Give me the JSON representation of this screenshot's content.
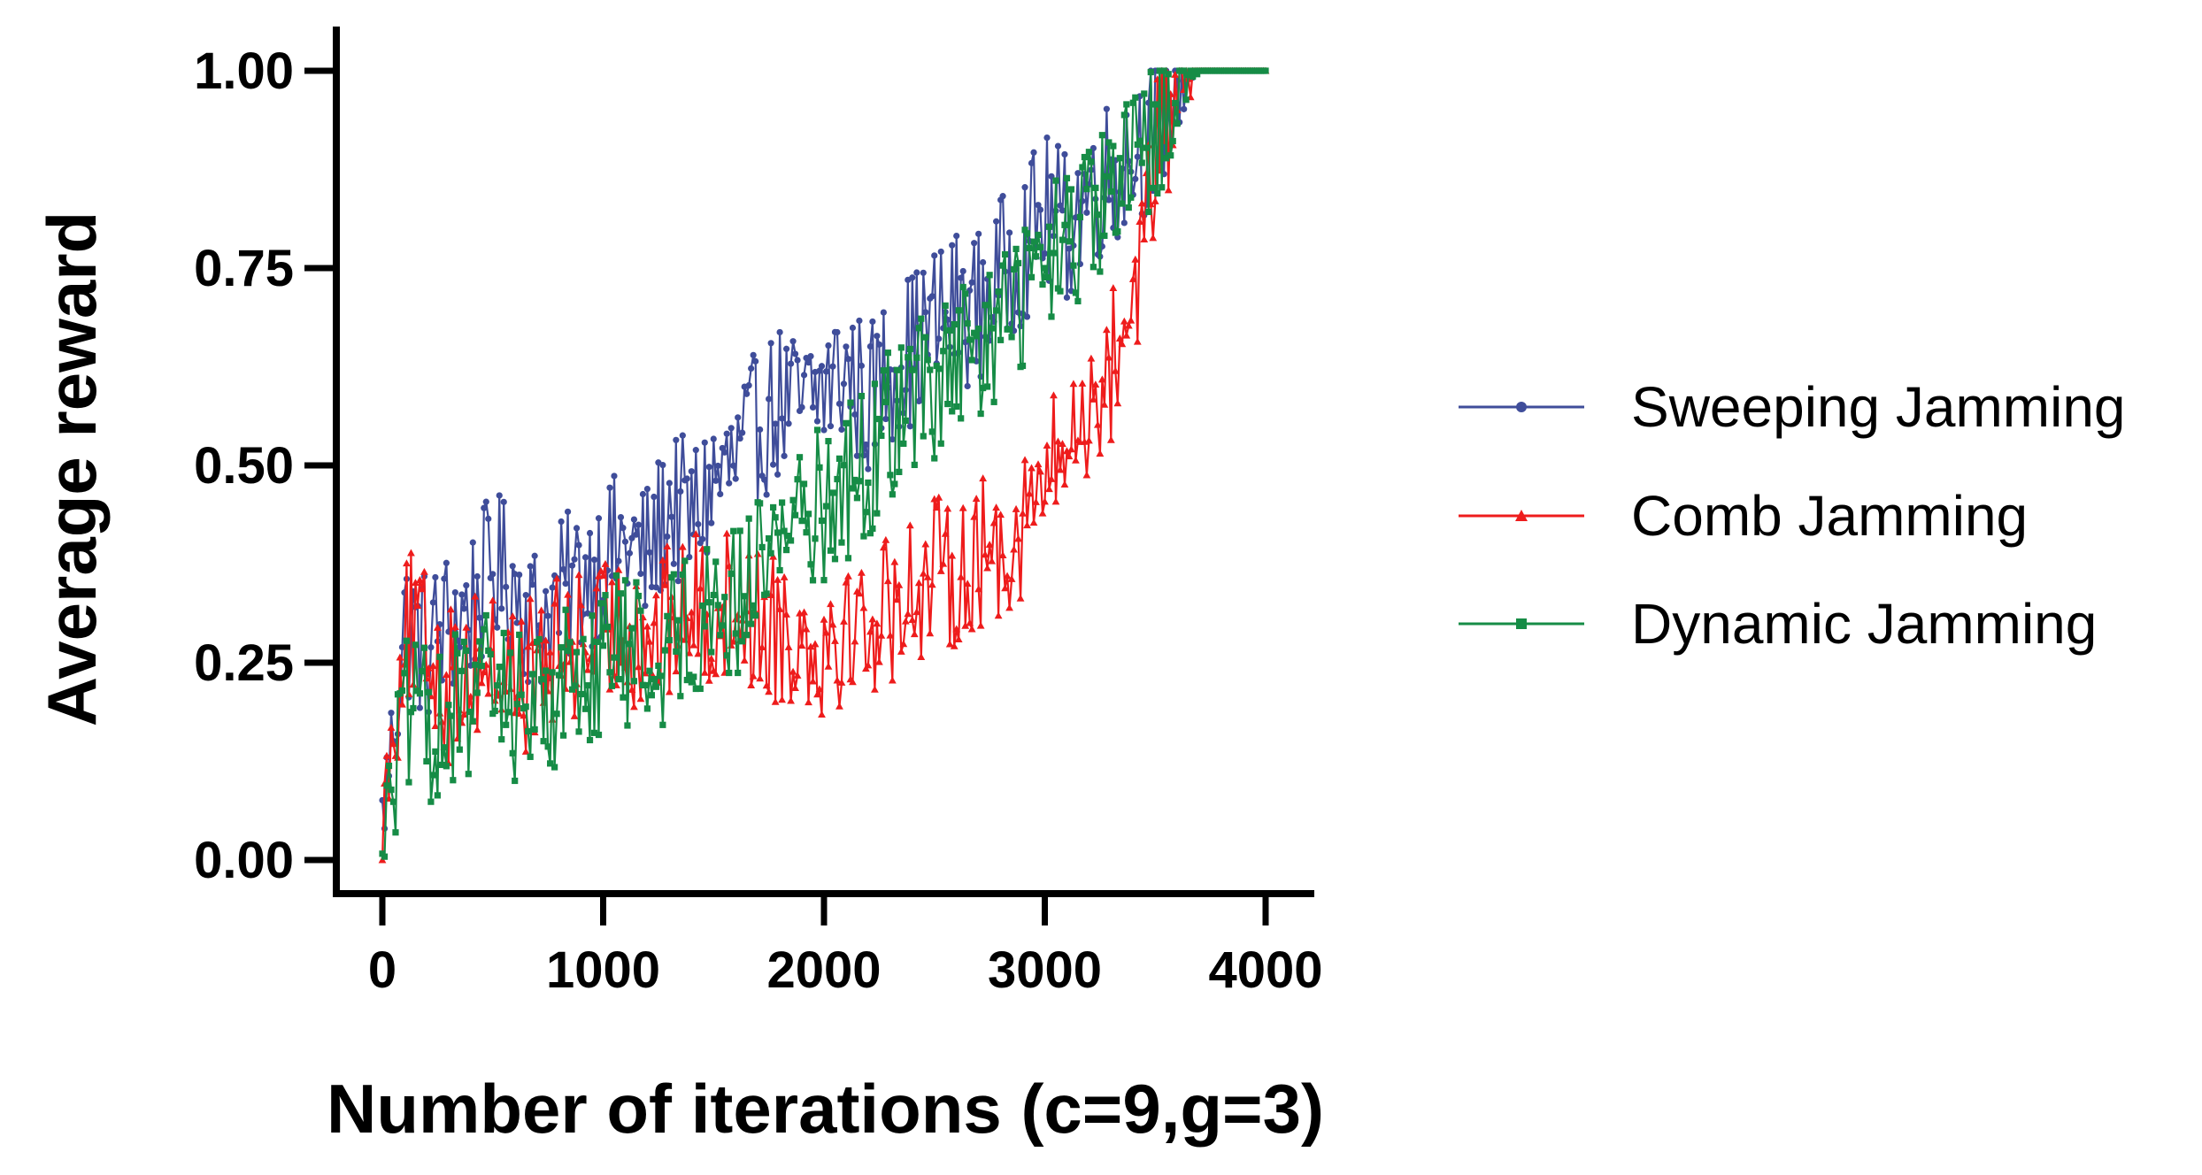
{
  "chart_data": {
    "type": "line",
    "title": "",
    "xlabel": "Number of iterations (c=9,g=3)",
    "ylabel": "Average reward",
    "xlim": [
      0,
      4000
    ],
    "ylim": [
      0.0,
      1.0
    ],
    "x_ticks": [
      0,
      1000,
      2000,
      3000,
      4000
    ],
    "x_tick_labels": [
      "0",
      "1000",
      "2000",
      "3000",
      "4000"
    ],
    "y_ticks": [
      0.0,
      0.25,
      0.5,
      0.75,
      1.0
    ],
    "y_tick_labels": [
      "0.00",
      "0.25",
      "0.50",
      "0.75",
      "1.00"
    ],
    "grid": false,
    "legend_position": "right",
    "series": [
      {
        "name": "Sweeping Jamming",
        "color": "#3f4d9a",
        "marker": "circle",
        "x": [
          0,
          100,
          200,
          300,
          400,
          500,
          600,
          700,
          800,
          900,
          1000,
          1100,
          1200,
          1300,
          1400,
          1500,
          1600,
          1700,
          1800,
          1900,
          2000,
          2100,
          2200,
          2300,
          2400,
          2500,
          2600,
          2700,
          2800,
          2900,
          3000,
          3100,
          3200,
          3300,
          3400,
          3500,
          3600,
          3700,
          3800,
          3900,
          4000
        ],
        "values": [
          0.05,
          0.3,
          0.27,
          0.3,
          0.32,
          0.37,
          0.35,
          0.3,
          0.33,
          0.36,
          0.38,
          0.4,
          0.38,
          0.45,
          0.43,
          0.48,
          0.5,
          0.55,
          0.58,
          0.57,
          0.6,
          0.62,
          0.58,
          0.63,
          0.65,
          0.68,
          0.7,
          0.7,
          0.74,
          0.78,
          0.82,
          0.8,
          0.85,
          0.87,
          0.9,
          0.93,
          0.99,
          1.0,
          1.0,
          1.0,
          1.0
        ]
      },
      {
        "name": "Comb Jamming",
        "color": "#ee1c1c",
        "marker": "triangle",
        "x": [
          0,
          100,
          200,
          300,
          400,
          500,
          600,
          700,
          800,
          900,
          1000,
          1100,
          1200,
          1300,
          1400,
          1500,
          1600,
          1700,
          1800,
          1900,
          2000,
          2100,
          2200,
          2300,
          2400,
          2500,
          2600,
          2700,
          2800,
          2900,
          3000,
          3100,
          3200,
          3300,
          3400,
          3500,
          3600,
          3700,
          3800,
          3900,
          4000
        ],
        "values": [
          0.05,
          0.3,
          0.27,
          0.22,
          0.25,
          0.25,
          0.23,
          0.24,
          0.26,
          0.28,
          0.28,
          0.3,
          0.28,
          0.3,
          0.32,
          0.31,
          0.33,
          0.3,
          0.3,
          0.28,
          0.28,
          0.3,
          0.3,
          0.32,
          0.35,
          0.36,
          0.37,
          0.38,
          0.4,
          0.43,
          0.48,
          0.52,
          0.58,
          0.62,
          0.72,
          0.88,
          0.98,
          1.0,
          1.0,
          1.0,
          1.0
        ]
      },
      {
        "name": "Dynamic Jamming",
        "color": "#168c46",
        "marker": "square",
        "x": [
          0,
          100,
          200,
          300,
          400,
          500,
          600,
          700,
          800,
          900,
          1000,
          1100,
          1200,
          1300,
          1400,
          1500,
          1600,
          1700,
          1800,
          1900,
          2000,
          2100,
          2200,
          2300,
          2400,
          2500,
          2600,
          2700,
          2800,
          2900,
          3000,
          3100,
          3200,
          3300,
          3400,
          3500,
          3600,
          3700,
          3800,
          3900,
          4000
        ],
        "values": [
          0.03,
          0.18,
          0.17,
          0.18,
          0.2,
          0.22,
          0.2,
          0.2,
          0.22,
          0.24,
          0.26,
          0.27,
          0.25,
          0.28,
          0.3,
          0.33,
          0.32,
          0.38,
          0.42,
          0.45,
          0.45,
          0.48,
          0.5,
          0.55,
          0.6,
          0.6,
          0.62,
          0.64,
          0.68,
          0.72,
          0.75,
          0.78,
          0.8,
          0.84,
          0.87,
          0.93,
          0.99,
          1.0,
          1.0,
          1.0,
          1.0
        ]
      }
    ]
  }
}
